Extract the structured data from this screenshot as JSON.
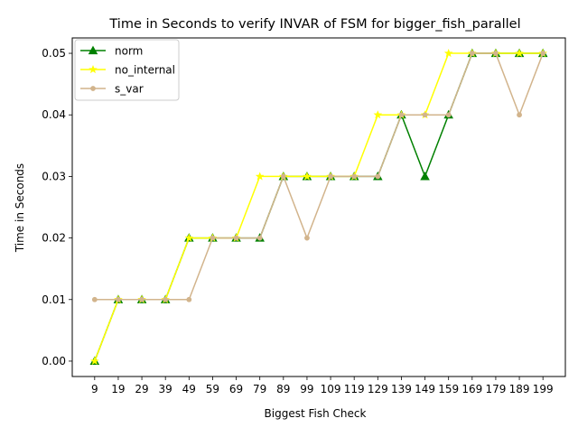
{
  "chart_data": {
    "type": "line",
    "title": "Time in Seconds to verify INVAR of FSM for bigger_fish_parallel",
    "xlabel": "Biggest Fish Check",
    "ylabel": "Time in Seconds",
    "categories": [
      "9",
      "19",
      "29",
      "39",
      "49",
      "59",
      "69",
      "79",
      "89",
      "99",
      "109",
      "119",
      "129",
      "139",
      "149",
      "159",
      "169",
      "179",
      "189",
      "199"
    ],
    "ylim": [
      -0.0025,
      0.0525
    ],
    "yticks": [
      0.0,
      0.01,
      0.02,
      0.03,
      0.04,
      0.05
    ],
    "ytick_labels": [
      "0.00",
      "0.01",
      "0.02",
      "0.03",
      "0.04",
      "0.05"
    ],
    "grid": false,
    "legend_position": "top-left",
    "series": [
      {
        "name": "norm",
        "color": "#008000",
        "marker": "triangle",
        "values": [
          0.0,
          0.01,
          0.01,
          0.01,
          0.02,
          0.02,
          0.02,
          0.02,
          0.03,
          0.03,
          0.03,
          0.03,
          0.03,
          0.04,
          0.03,
          0.04,
          0.05,
          0.05,
          0.05,
          0.05
        ]
      },
      {
        "name": "no_internal",
        "color": "#ffff00",
        "marker": "star",
        "values": [
          0.0,
          0.01,
          0.01,
          0.01,
          0.02,
          0.02,
          0.02,
          0.03,
          0.03,
          0.03,
          0.03,
          0.03,
          0.04,
          0.04,
          0.04,
          0.05,
          0.05,
          0.05,
          0.05,
          0.05
        ]
      },
      {
        "name": "s_var",
        "color": "#d2b48c",
        "marker": "circle",
        "values": [
          0.01,
          0.01,
          0.01,
          0.01,
          0.01,
          0.02,
          0.02,
          0.02,
          0.03,
          0.02,
          0.03,
          0.03,
          0.03,
          0.04,
          0.04,
          0.04,
          0.05,
          0.05,
          0.04,
          0.05
        ]
      }
    ]
  }
}
